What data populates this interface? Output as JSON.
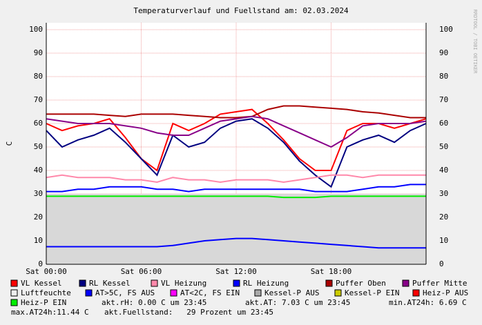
{
  "chart_data": {
    "type": "line",
    "title": "Temperaturverlauf und Fuellstand am: 02.03.2024",
    "ylabel": "C",
    "side_text": "RRDTOOL / TOBI OETIKER",
    "grid": true,
    "xlim": [
      0,
      24
    ],
    "xticks": [
      {
        "value": 0,
        "label": "Sat 00:00"
      },
      {
        "value": 6,
        "label": "Sat 06:00"
      },
      {
        "value": 12,
        "label": "Sat 12:00"
      },
      {
        "value": 18,
        "label": "Sat 18:00"
      }
    ],
    "ylim": [
      0,
      100
    ],
    "yticks": [
      0,
      10,
      20,
      30,
      40,
      50,
      60,
      70,
      80,
      90,
      100
    ],
    "x": [
      0,
      1,
      2,
      3,
      4,
      5,
      6,
      7,
      8,
      9,
      10,
      11,
      12,
      13,
      14,
      15,
      16,
      17,
      18,
      19,
      20,
      21,
      22,
      23,
      24
    ],
    "series": [
      {
        "name": "VL Kessel",
        "color": "#ff0000",
        "values": [
          60,
          57,
          59,
          60,
          62,
          54,
          45,
          40,
          60,
          57,
          60,
          64,
          65,
          66,
          60,
          53,
          45,
          40,
          40,
          57,
          60,
          60,
          58,
          60,
          62
        ]
      },
      {
        "name": "RL Kessel",
        "color": "#000080",
        "values": [
          57,
          50,
          53,
          55,
          58,
          52,
          45,
          38,
          55,
          50,
          52,
          58,
          61,
          62,
          58,
          52,
          44,
          38,
          33,
          50,
          53,
          55,
          52,
          57,
          60
        ]
      },
      {
        "name": "VL Heizung",
        "color": "#ff88aa",
        "values": [
          37,
          38,
          37,
          37,
          37,
          36,
          36,
          35,
          37,
          36,
          36,
          35,
          36,
          36,
          36,
          35,
          36,
          37,
          38,
          38,
          37,
          38,
          38,
          38,
          38
        ]
      },
      {
        "name": "RL Heizung",
        "color": "#0000ff",
        "values": [
          31,
          31,
          32,
          32,
          33,
          33,
          33,
          32,
          32,
          31,
          32,
          32,
          32,
          32,
          32,
          32,
          32,
          31,
          31,
          31,
          32,
          33,
          33,
          34,
          34
        ]
      },
      {
        "name": "Puffer Oben",
        "color": "#aa0000",
        "values": [
          64,
          64,
          64,
          64,
          63.5,
          63,
          64,
          64,
          64,
          63.5,
          63,
          62.5,
          62.5,
          63,
          66,
          67.5,
          67.5,
          67,
          66.5,
          66,
          65,
          64.5,
          63.5,
          62.5,
          62.5
        ]
      },
      {
        "name": "Puffer Mitte",
        "color": "#880088",
        "values": [
          62,
          61,
          60,
          60,
          60,
          59,
          58,
          56,
          55,
          55,
          58,
          61,
          62,
          63,
          62,
          59,
          56,
          53,
          50,
          54,
          59,
          60,
          60,
          60,
          61
        ]
      },
      {
        "name": "Luftfeuchte",
        "color": "#eeeeee"
      },
      {
        "name": "AT>5C, FS AUS",
        "color": "#0000ff",
        "values": [
          7.5,
          7.5,
          7.5,
          7.5,
          7.5,
          7.5,
          7.5,
          7.5,
          8,
          9,
          10,
          10.5,
          11,
          11,
          10.5,
          10,
          9.5,
          9,
          8.5,
          8,
          7.5,
          7,
          7,
          7,
          7
        ]
      },
      {
        "name": "AT<2C, FS EIN",
        "color": "#ff00ff"
      },
      {
        "name": "Kessel-P AUS",
        "color": "#aaaaaa",
        "area": true,
        "values": [
          30,
          30,
          30,
          30,
          30,
          30,
          30,
          30,
          30,
          30,
          30,
          30,
          30,
          30,
          30,
          30,
          30,
          30,
          30,
          30,
          30,
          30,
          30,
          30,
          30
        ]
      },
      {
        "name": "Kessel-P EIN",
        "color": "#cccc00"
      },
      {
        "name": "Heiz-P AUS",
        "color": "#ff0000"
      },
      {
        "name": "Heiz-P EIN",
        "color": "#00ee00",
        "values": [
          29,
          29,
          29,
          29,
          29,
          29,
          29,
          29,
          29,
          29,
          29,
          29,
          29,
          29,
          29,
          28.5,
          28.5,
          28.5,
          29,
          29,
          29,
          29,
          29,
          29,
          29
        ]
      }
    ],
    "notes": [
      "akt.rH: 0.00 C um 23:45",
      "akt.AT: 7.03 C um 23:45",
      "min.AT24h: 6.69 C",
      "max.AT24h:11.44 C",
      "akt.Fuellstand:   29 Prozent um 23:45"
    ]
  }
}
